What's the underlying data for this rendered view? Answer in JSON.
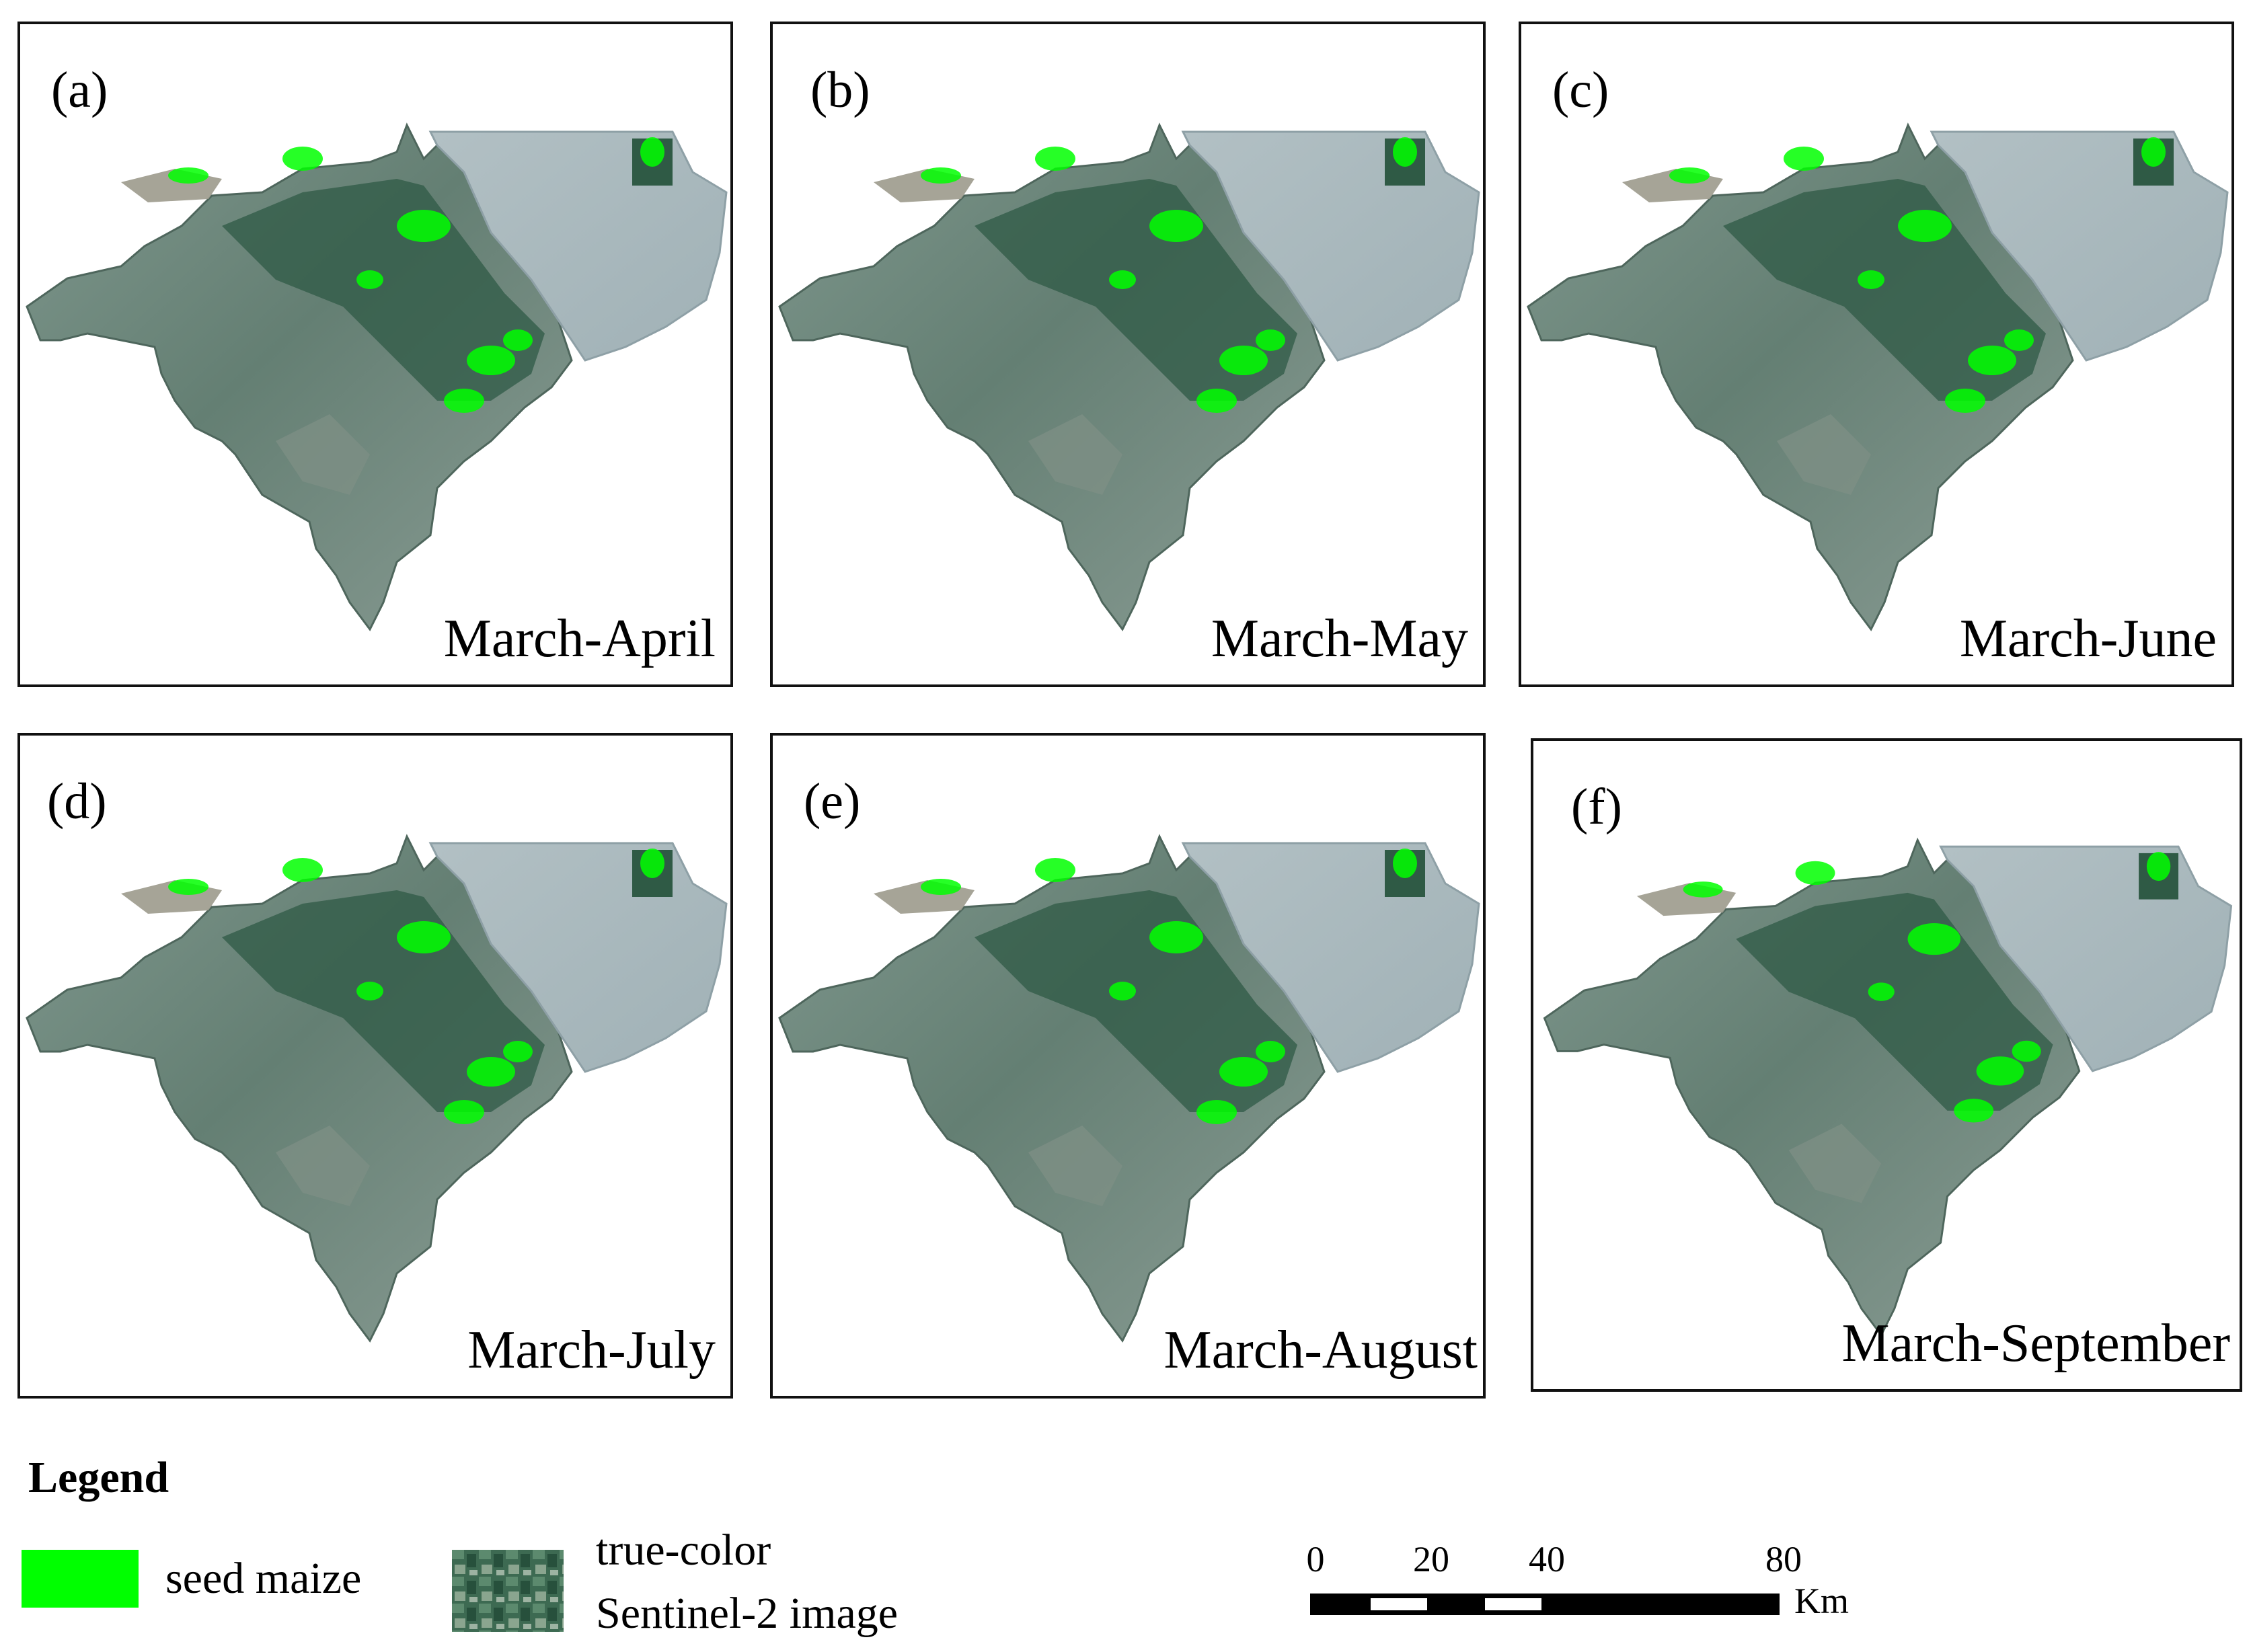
{
  "panels": [
    {
      "letter": "(a)",
      "period": "March-April"
    },
    {
      "letter": "(b)",
      "period": "March-May"
    },
    {
      "letter": "(c)",
      "period": "March-June"
    },
    {
      "letter": "(d)",
      "period": "March-July"
    },
    {
      "letter": "(e)",
      "period": "March-August"
    },
    {
      "letter": "(f)",
      "period": "March-September"
    }
  ],
  "legend": {
    "title": "Legend",
    "seed_maize": "seed maize",
    "true_color_line1": "true-color",
    "true_color_line2": "Sentinel-2 image"
  },
  "scale_bar": {
    "ticks": [
      "0",
      "20",
      "40",
      "80"
    ],
    "unit": "Km"
  },
  "colors": {
    "seed_maize": "#00ff00",
    "terrain": "#6f8a80",
    "vegetation": "#2f5a45",
    "lake": "#a9b8bd",
    "lake_edge": "#8ea0a6"
  }
}
